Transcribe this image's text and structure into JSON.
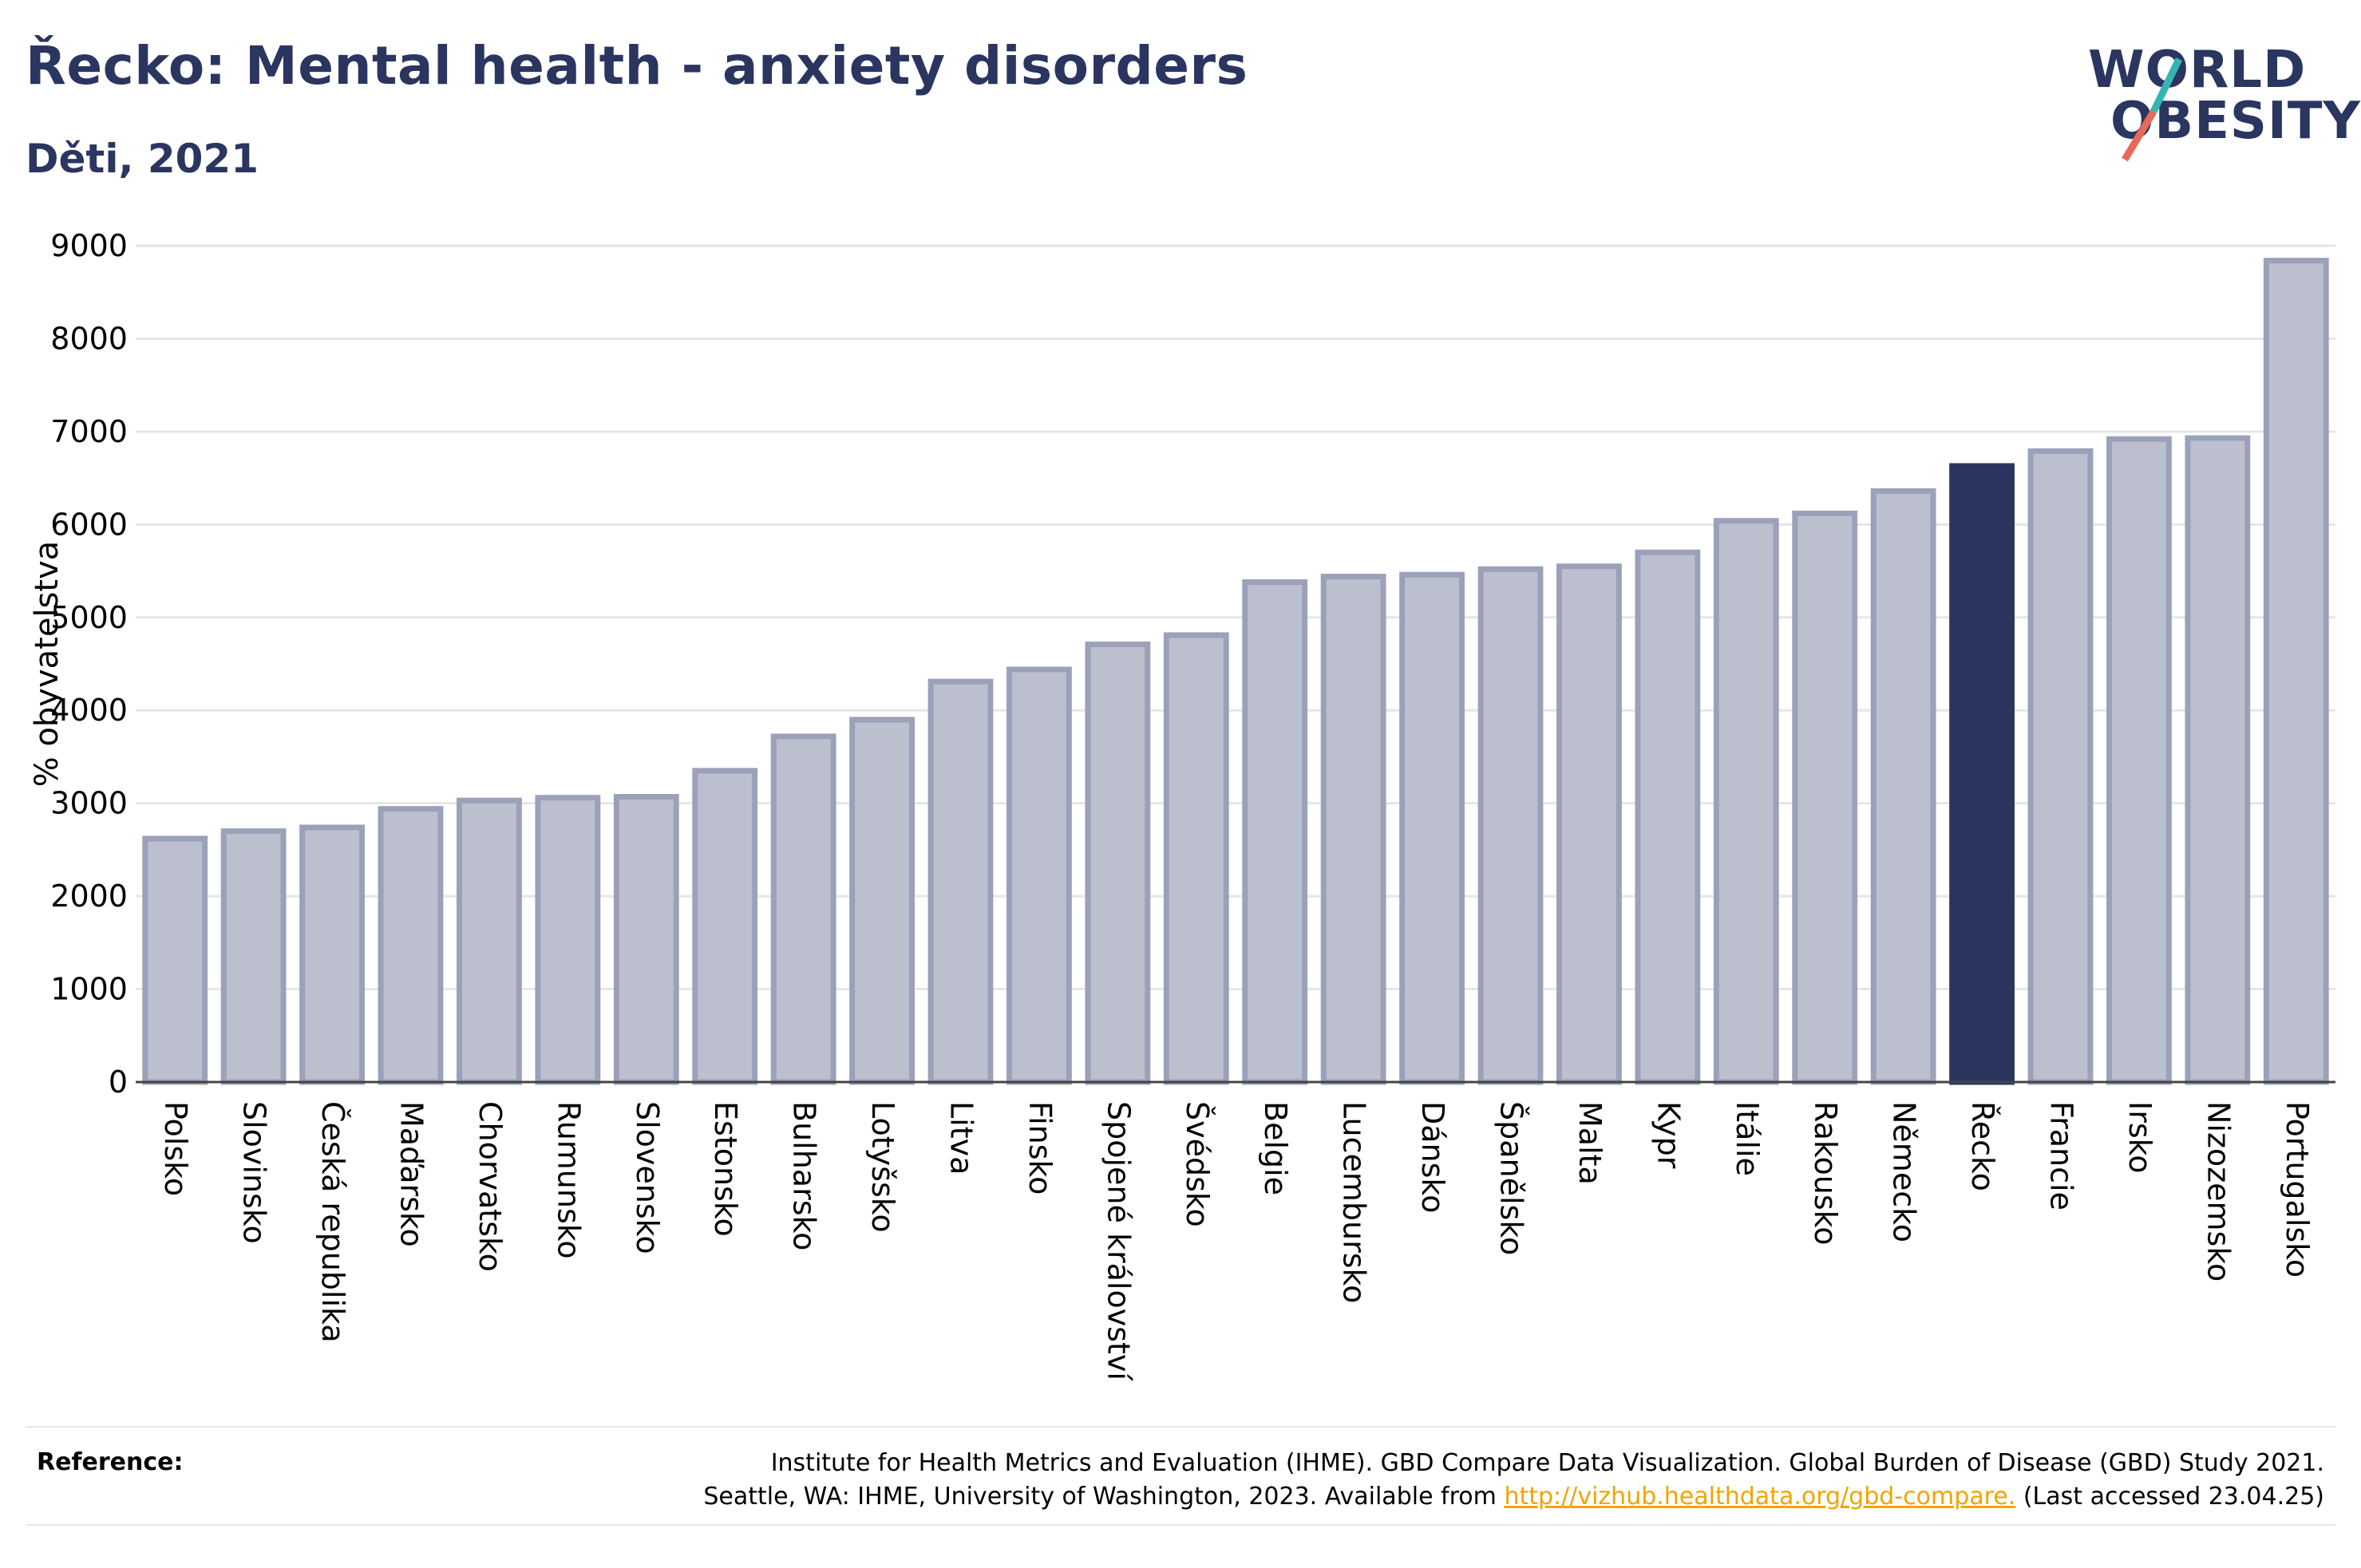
{
  "header": {
    "title": "Řecko: Mental health - anxiety disorders",
    "subtitle": "Děti, 2021"
  },
  "logo": {
    "line1": "WORLD",
    "line2": "OBESITY"
  },
  "colors": {
    "bar": "#bcc0ce",
    "bar_border": "#9aa1b9",
    "highlight": "#2a3560",
    "grid": "#e6e6e6",
    "logo_slash_top": "#36b5b0",
    "logo_slash_bottom": "#e8685a"
  },
  "chart_data": {
    "type": "bar",
    "title": "Řecko: Mental health - anxiety disorders",
    "subtitle": "Děti, 2021",
    "ylabel": "% obyvatelstva",
    "ylim": [
      0,
      9000
    ],
    "yticks": [
      0,
      1000,
      2000,
      3000,
      4000,
      5000,
      6000,
      7000,
      8000,
      9000
    ],
    "grid": true,
    "highlight": "Řecko",
    "categories": [
      "Polsko",
      "Slovinsko",
      "Česká republika",
      "Maďarsko",
      "Chorvatsko",
      "Rumunsko",
      "Slovensko",
      "Estonsko",
      "Bulharsko",
      "Lotyšsko",
      "Litva",
      "Finsko",
      "Spojené království",
      "Švédsko",
      "Belgie",
      "Lucembursko",
      "Dánsko",
      "Španělsko",
      "Malta",
      "Kypr",
      "Itálie",
      "Rakousko",
      "Německo",
      "Řecko",
      "Francie",
      "Irsko",
      "Nizozemsko",
      "Portugalsko"
    ],
    "values": [
      2620,
      2700,
      2740,
      2940,
      3030,
      3060,
      3070,
      3350,
      3720,
      3900,
      4310,
      4440,
      4710,
      4810,
      5380,
      5440,
      5460,
      5520,
      5550,
      5700,
      6040,
      6120,
      6360,
      6630,
      6790,
      6920,
      6930,
      8840
    ]
  },
  "reference": {
    "label": "Reference:",
    "line1": "Institute for Health Metrics and Evaluation (IHME). GBD Compare Data Visualization. Global Burden of Disease (GBD) Study 2021.",
    "line2_prefix": "Seattle, WA: IHME, University of Washington, 2023. Available from",
    "link": "http://vizhub.healthdata.org/gbd-compare.",
    "line2_suffix": "(Last accessed 23.04.25)"
  }
}
